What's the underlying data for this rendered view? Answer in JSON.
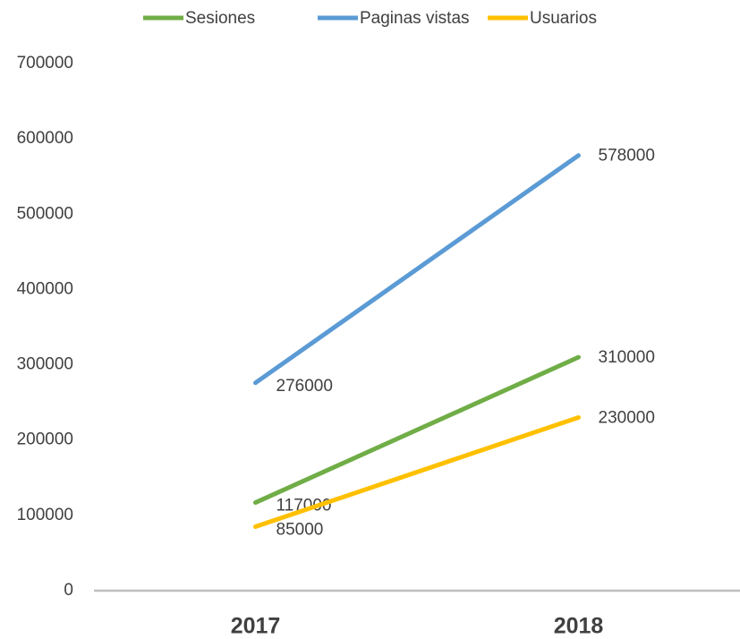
{
  "chart_data": {
    "type": "line",
    "categories": [
      "2017",
      "2018"
    ],
    "series": [
      {
        "name": "Sesiones",
        "color": "#70ad47",
        "values": [
          117000,
          310000
        ]
      },
      {
        "name": "Paginas vistas",
        "color": "#5b9bd5",
        "values": [
          276000,
          578000
        ]
      },
      {
        "name": "Usuarios",
        "color": "#ffc000",
        "values": [
          85000,
          230000
        ]
      }
    ],
    "ylim": [
      0,
      700000
    ],
    "yticks": [
      0,
      100000,
      200000,
      300000,
      400000,
      500000,
      600000,
      700000
    ],
    "grid": false,
    "legend": "top"
  }
}
